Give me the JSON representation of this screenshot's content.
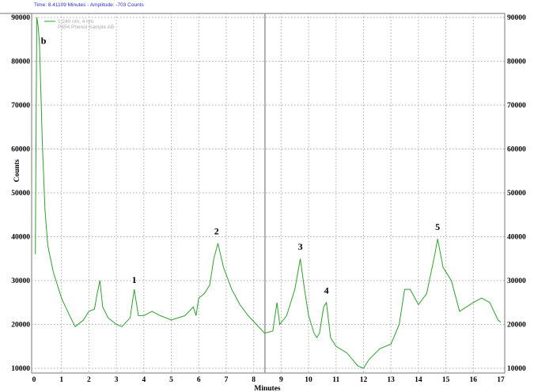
{
  "header": {
    "readout": "Time:  8.41109 Minutes - Amplitude:  -703 Counts"
  },
  "chart_data": {
    "type": "line",
    "title": "",
    "xlabel": "Minutes",
    "ylabel": "Counts",
    "xlim": [
      0,
      17
    ],
    "ylim": [
      10000,
      90000
    ],
    "xticks": [
      "0",
      "1",
      "2",
      "3",
      "4",
      "5",
      "6",
      "7",
      "8",
      "9",
      "10",
      "11",
      "12",
      "13",
      "14",
      "15",
      "16",
      "17"
    ],
    "yticks_left": [
      "10000",
      "20000",
      "30000",
      "40000",
      "50000",
      "60000",
      "70000",
      "80000",
      "90000"
    ],
    "yticks_right": [
      "10000",
      "20000",
      "30000",
      "40000",
      "50000",
      "60000",
      "70000",
      "80000",
      "90000"
    ],
    "grid": true,
    "cursor_time": 8.41109,
    "legend": {
      "placement": "top-left",
      "entries": [
        "1:240 nm, 4 nm",
        "P654 Phenol Sample AB"
      ]
    },
    "series": [
      {
        "color": "#2ea02e",
        "x": [
          0.05,
          0.08,
          0.1,
          0.15,
          0.2,
          0.3,
          0.4,
          0.5,
          0.7,
          1.0,
          1.3,
          1.5,
          1.8,
          2.0,
          2.2,
          2.3,
          2.4,
          2.5,
          2.7,
          3.0,
          3.2,
          3.5,
          3.65,
          3.8,
          4.0,
          4.3,
          4.6,
          5.0,
          5.5,
          5.8,
          5.9,
          6.0,
          6.2,
          6.4,
          6.55,
          6.7,
          6.9,
          7.2,
          7.5,
          7.8,
          8.1,
          8.4,
          8.7,
          8.85,
          8.95,
          9.2,
          9.5,
          9.7,
          9.85,
          10.0,
          10.2,
          10.3,
          10.4,
          10.55,
          10.65,
          10.8,
          11.0,
          11.4,
          11.8,
          12.0,
          12.2,
          12.6,
          13.0,
          13.3,
          13.5,
          13.7,
          14.0,
          14.3,
          14.6,
          14.7,
          14.9,
          15.2,
          15.5,
          16.0,
          16.3,
          16.6,
          16.9,
          17.0
        ],
        "y": [
          36000,
          70000,
          90000,
          88000,
          84000,
          62000,
          46000,
          38000,
          32000,
          26000,
          22000,
          19500,
          21000,
          23000,
          23500,
          27000,
          30000,
          24000,
          21500,
          20000,
          19500,
          21500,
          28000,
          22000,
          22000,
          23000,
          22000,
          21000,
          22000,
          24000,
          22000,
          26000,
          27000,
          29000,
          35000,
          38500,
          33000,
          28000,
          24500,
          22000,
          20000,
          18000,
          18500,
          25000,
          20000,
          22000,
          28000,
          35000,
          28000,
          22000,
          18000,
          17000,
          18000,
          24000,
          25000,
          17000,
          15000,
          13500,
          10500,
          10000,
          12000,
          14500,
          15500,
          20000,
          28000,
          28000,
          24500,
          27000,
          36000,
          39500,
          33000,
          30000,
          23000,
          25000,
          26000,
          25000,
          21000,
          20500
        ]
      }
    ],
    "annotations": [
      {
        "text": "b",
        "x": 0.35,
        "y": 84000
      },
      {
        "text": "1",
        "x": 3.65,
        "y": 29500
      },
      {
        "text": "2",
        "x": 6.65,
        "y": 40500
      },
      {
        "text": "3",
        "x": 9.7,
        "y": 37000
      },
      {
        "text": "4",
        "x": 10.65,
        "y": 27000
      },
      {
        "text": "5",
        "x": 14.7,
        "y": 41500
      }
    ]
  }
}
